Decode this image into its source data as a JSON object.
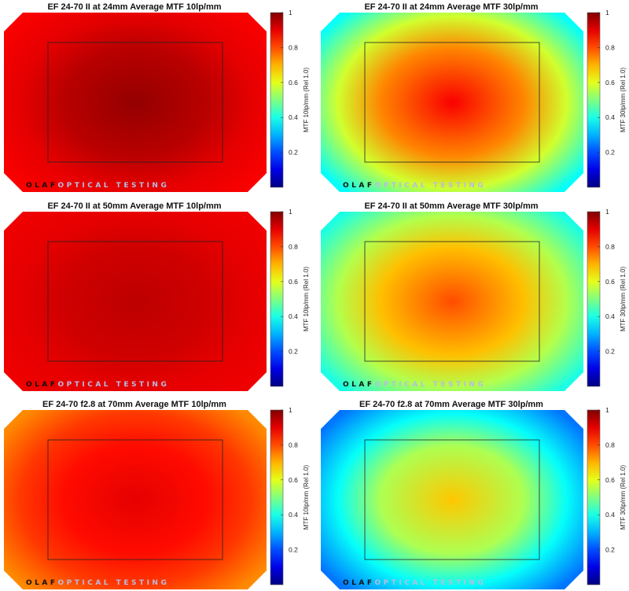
{
  "chart_data": [
    {
      "type": "heatmap",
      "title": "EF 24-70 II at 24mm Average MTF 10lp/mm",
      "colorbar_label": "MTF 10lp/mm (Rel 1.0)",
      "colorbar_ticks": [
        "0.2",
        "0.4",
        "0.6",
        "0.8",
        "1"
      ],
      "clim": [
        0,
        1
      ],
      "colormap": "jet",
      "center_value": 0.98,
      "edge_value": 0.9,
      "corner_value": 0.88,
      "watermark": {
        "part1": "OLAF",
        "part2": "OPTICAL TESTING"
      }
    },
    {
      "type": "heatmap",
      "title": "EF 24-70 II at 24mm Average MTF 30lp/mm",
      "colorbar_label": "MTF 30lp/mm (Rel 1.0)",
      "colorbar_ticks": [
        "0.2",
        "0.4",
        "0.6",
        "0.8",
        "1"
      ],
      "clim": [
        0,
        1
      ],
      "colormap": "jet",
      "center_value": 0.88,
      "edge_value": 0.58,
      "corner_value": 0.38,
      "watermark": {
        "part1": "OLAF",
        "part2": "OPTICAL TESTING"
      }
    },
    {
      "type": "heatmap",
      "title": "EF 24-70 II at 50mm Average MTF 10lp/mm",
      "colorbar_label": "MTF 10lp/mm (Rel 1.0)",
      "colorbar_ticks": [
        "0.2",
        "0.4",
        "0.6",
        "0.8",
        "1"
      ],
      "clim": [
        0,
        1
      ],
      "colormap": "jet",
      "center_value": 0.94,
      "edge_value": 0.9,
      "corner_value": 0.89,
      "watermark": {
        "part1": "OLAF",
        "part2": "OPTICAL TESTING"
      }
    },
    {
      "type": "heatmap",
      "title": "EF 24-70 II at 50mm Average MTF 30lp/mm",
      "colorbar_label": "MTF 30lp/mm (Rel 1.0)",
      "colorbar_ticks": [
        "0.2",
        "0.4",
        "0.6",
        "0.8",
        "1"
      ],
      "clim": [
        0,
        1
      ],
      "colormap": "jet",
      "center_value": 0.8,
      "edge_value": 0.55,
      "corner_value": 0.4,
      "watermark": {
        "part1": "OLAF",
        "part2": "OPTICAL TESTING"
      }
    },
    {
      "type": "heatmap",
      "title": "EF 24-70 f2.8 at 70mm Average MTF 10lp/mm",
      "colorbar_label": "MTF 10lp/mm (Rel 1.0)",
      "colorbar_ticks": [
        "0.2",
        "0.4",
        "0.6",
        "0.8",
        "1"
      ],
      "clim": [
        0,
        1
      ],
      "colormap": "jet",
      "center_value": 0.9,
      "edge_value": 0.82,
      "corner_value": 0.74,
      "watermark": {
        "part1": "OLAF",
        "part2": "OPTICAL TESTING"
      }
    },
    {
      "type": "heatmap",
      "title": "EF 24-70 f2.8 at 70mm Average MTF 30lp/mm",
      "colorbar_label": "MTF 30lp/mm (Rel 1.0)",
      "colorbar_ticks": [
        "0.2",
        "0.4",
        "0.6",
        "0.8",
        "1"
      ],
      "clim": [
        0,
        1
      ],
      "colormap": "jet",
      "center_value": 0.68,
      "edge_value": 0.38,
      "corner_value": 0.24,
      "watermark": {
        "part1": "OLAF",
        "part2": "OPTICAL TESTING"
      }
    }
  ]
}
